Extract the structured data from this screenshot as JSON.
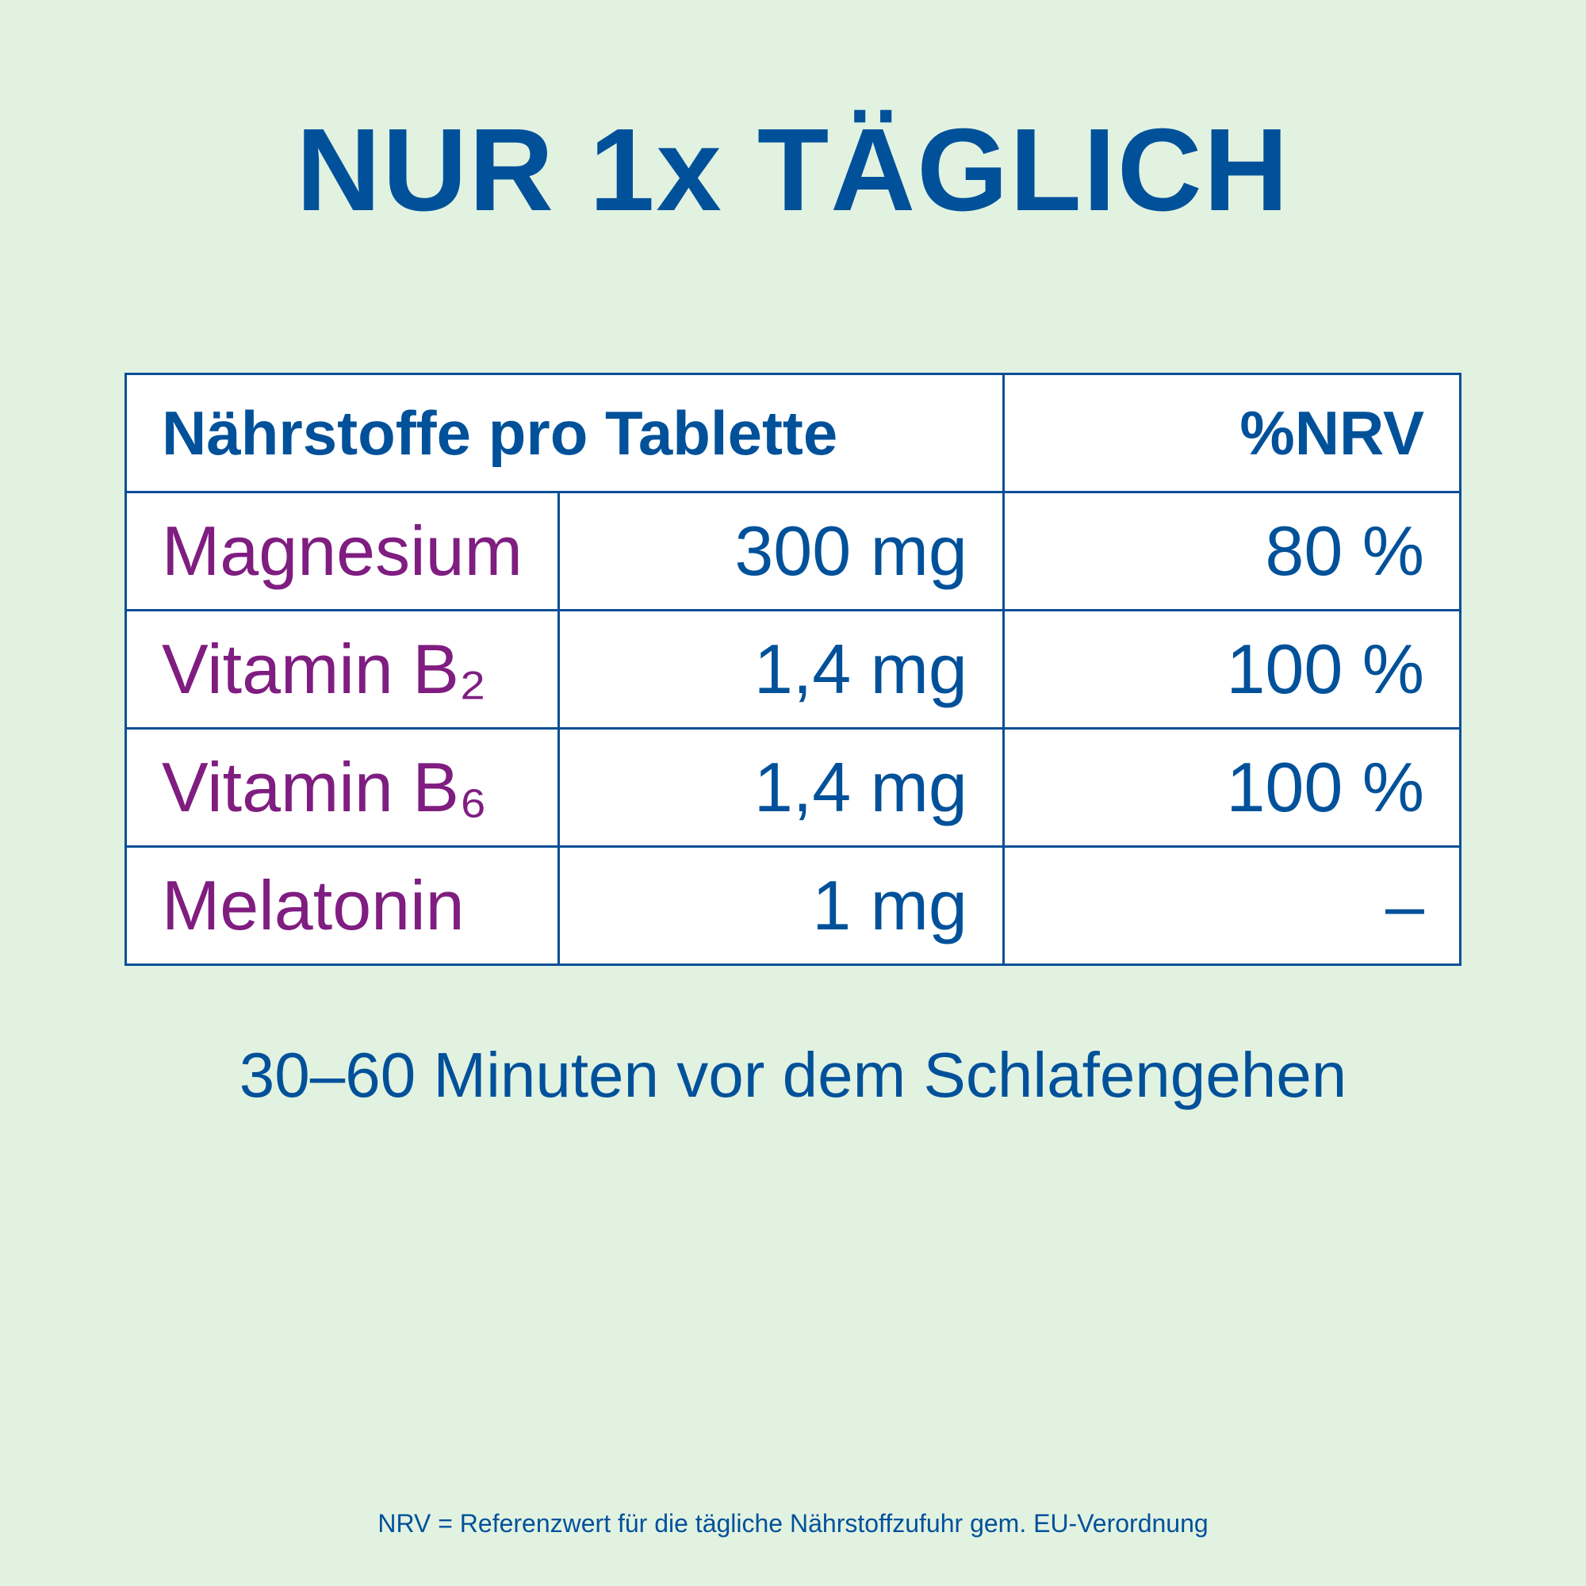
{
  "colors": {
    "background": "#e2f2e1",
    "primary_blue": "#00519a",
    "nutrient_purple": "#7f1d80"
  },
  "title": "NUR 1x TÄGLICH",
  "table": {
    "header": {
      "nutrients": "Nährstoffe pro Tablette",
      "nrv": "%NRV"
    },
    "rows": [
      {
        "name": "Magnesium",
        "amount": "300 mg",
        "nrv": "80 %"
      },
      {
        "name": "Vitamin B₂",
        "amount": "1,4 mg",
        "nrv": "100 %"
      },
      {
        "name": "Vitamin B₆",
        "amount": "1,4 mg",
        "nrv": "100 %"
      },
      {
        "name": "Melatonin",
        "amount": "1 mg",
        "nrv": "–"
      }
    ]
  },
  "instruction": "30–60 Minuten vor dem Schlafengehen",
  "footnote": "NRV = Referenzwert für die tägliche Nährstoffzufuhr gem. EU-Verordnung"
}
